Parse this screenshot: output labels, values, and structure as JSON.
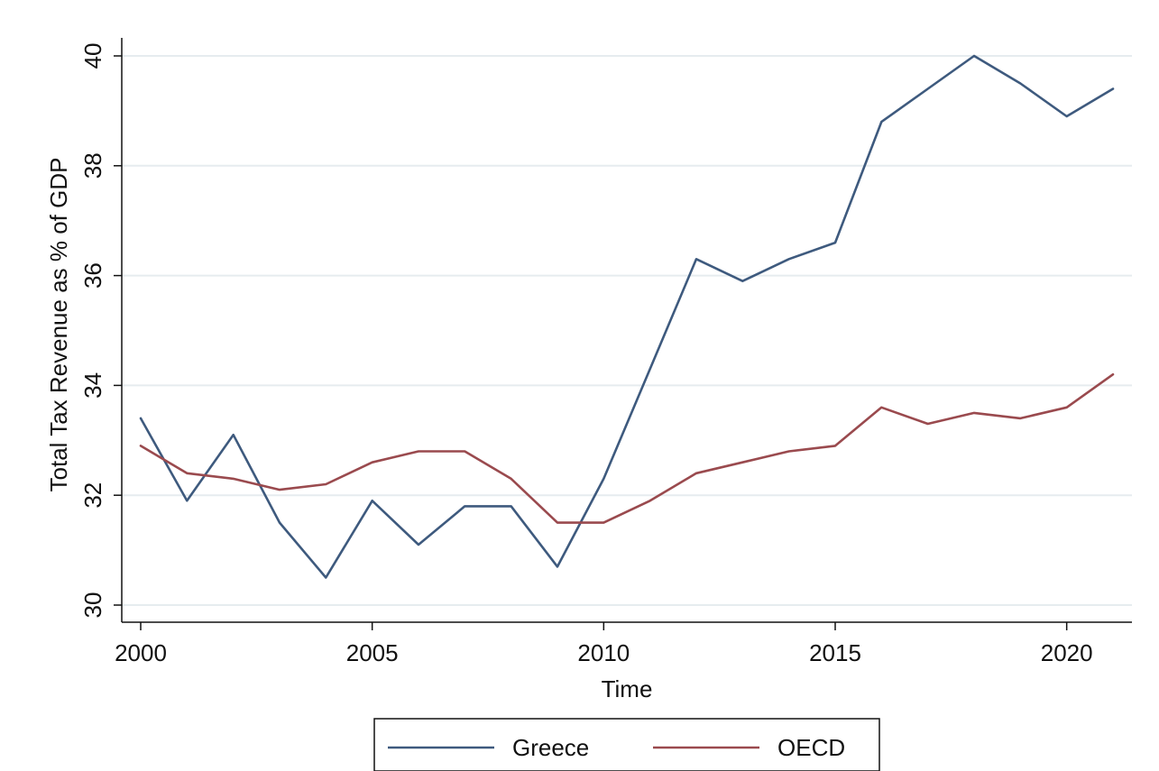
{
  "chart_data": {
    "type": "line",
    "xlabel": "Time",
    "ylabel": "Total Tax Revenue as % of GDP",
    "xlim": [
      2000,
      2021
    ],
    "ylim": [
      30,
      40
    ],
    "x_ticks": [
      2000,
      2005,
      2010,
      2015,
      2020
    ],
    "y_ticks": [
      30,
      32,
      34,
      36,
      38,
      40
    ],
    "grid": "horizontal",
    "legend_position": "bottom",
    "x": [
      2000,
      2001,
      2002,
      2003,
      2004,
      2005,
      2006,
      2007,
      2008,
      2009,
      2010,
      2011,
      2012,
      2013,
      2014,
      2015,
      2016,
      2017,
      2018,
      2019,
      2020,
      2021
    ],
    "series": [
      {
        "name": "Greece",
        "color": "#3e5a7e",
        "values": [
          33.4,
          31.9,
          33.1,
          31.5,
          30.5,
          31.9,
          31.1,
          31.8,
          31.8,
          30.7,
          32.3,
          34.3,
          36.3,
          35.9,
          36.3,
          36.6,
          38.8,
          39.4,
          40.0,
          39.5,
          38.9,
          39.4
        ]
      },
      {
        "name": "OECD",
        "color": "#9a4a4e",
        "values": [
          32.9,
          32.4,
          32.3,
          32.1,
          32.2,
          32.6,
          32.8,
          32.8,
          32.3,
          31.5,
          31.5,
          31.9,
          32.4,
          32.6,
          32.8,
          32.9,
          33.6,
          33.3,
          33.5,
          33.4,
          33.6,
          34.2
        ]
      }
    ]
  }
}
